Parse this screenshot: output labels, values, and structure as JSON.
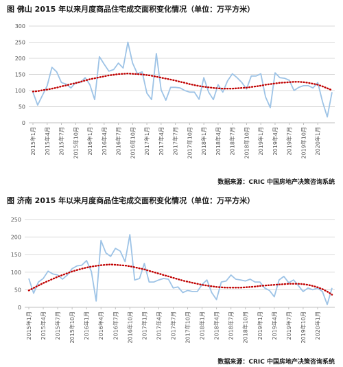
{
  "charts": [
    {
      "title": "图 佛山 2015 年以来月度商品住宅成交面积变化情况（单位：万平方米）",
      "source": "数据来源：CRIC 中国房地产决策咨询系统"
    },
    {
      "title": "图 济南 2015 年以来月度商品住宅成交面积变化情况（单位：万平方米）",
      "source": "数据来源：CRIC 中国房地产决策咨询系统"
    }
  ],
  "colors": {
    "series": "#9dc3e6",
    "trend": "#c00000",
    "grid": "#d9d9d9",
    "axis": "#bfbfbf"
  },
  "chart_data": [
    {
      "type": "line",
      "title": "图 佛山 2015 年以来月度商品住宅成交面积变化情况（单位：万平方米）",
      "x_tick_labels": [
        "2015年1月",
        "2015年4月",
        "2015年7月",
        "2015年10月",
        "2016年1月",
        "2016年4月",
        "2016年7月",
        "2016年10月",
        "2017年1月",
        "2017年4月",
        "2017年7月",
        "2017年10月",
        "2018年1月",
        "2018年4月",
        "2018年7月",
        "2018年10月",
        "2019年1月",
        "2019年4月",
        "2019年7月",
        "2019年10月",
        "2020年1月"
      ],
      "x_start": "2015-01",
      "x_end": "2020-04",
      "ylim": [
        0,
        300
      ],
      "yticks": [
        0,
        50,
        100,
        150,
        200,
        250,
        300
      ],
      "grid": true,
      "series": [
        {
          "kind": "data",
          "values": [
            95,
            55,
            85,
            115,
            172,
            158,
            125,
            120,
            108,
            125,
            125,
            140,
            118,
            72,
            205,
            182,
            160,
            165,
            185,
            170,
            250,
            185,
            152,
            158,
            92,
            72,
            215,
            102,
            70,
            110,
            110,
            108,
            100,
            95,
            95,
            73,
            140,
            95,
            72,
            118,
            95,
            130,
            152,
            140,
            125,
            105,
            145,
            145,
            152,
            80,
            47,
            155,
            140,
            138,
            132,
            100,
            110,
            115,
            115,
            108,
            125,
            65,
            18,
            95
          ]
        },
        {
          "kind": "trend",
          "values": [
            97,
            98,
            101,
            103,
            106,
            109,
            113,
            116,
            120,
            123,
            127,
            131,
            135,
            138,
            141,
            144,
            147,
            149,
            151,
            152,
            153,
            152,
            151,
            150,
            148,
            146,
            143,
            140,
            137,
            134,
            131,
            127,
            124,
            120,
            117,
            114,
            112,
            110,
            108,
            107,
            106,
            106,
            106,
            107,
            108,
            109,
            111,
            113,
            115,
            118,
            120,
            122,
            124,
            125,
            126,
            127,
            127,
            126,
            124,
            121,
            118,
            113,
            107,
            101
          ]
        }
      ]
    },
    {
      "type": "line",
      "title": "图 济南 2015 年以来月度商品住宅成交面积变化情况（单位：万平方米）",
      "x_tick_labels": [
        "2015年1月",
        "2015年4月",
        "2015年7月",
        "2015年10月",
        "2016年1月",
        "2016年4月",
        "2016年7月",
        "2016年10月",
        "2017年1月",
        "2017年4月",
        "2017年7月",
        "2017年10月",
        "2018年1月",
        "2018年4月",
        "2018年7月",
        "2018年10月",
        "2019年1月",
        "2019年4月",
        "2019年7月",
        "2019年10月",
        "2020年1月"
      ],
      "x_start": "2015-01",
      "x_end": "2020-04",
      "ylim": [
        0,
        250
      ],
      "yticks": [
        0,
        50,
        100,
        150,
        200,
        250
      ],
      "grid": true,
      "series": [
        {
          "kind": "data",
          "values": [
            82,
            40,
            72,
            82,
            103,
            95,
            92,
            80,
            92,
            110,
            118,
            120,
            133,
            102,
            18,
            190,
            155,
            145,
            168,
            160,
            130,
            207,
            78,
            82,
            125,
            72,
            72,
            78,
            82,
            80,
            55,
            58,
            42,
            48,
            45,
            45,
            65,
            78,
            42,
            22,
            72,
            75,
            92,
            80,
            78,
            75,
            80,
            72,
            72,
            55,
            48,
            30,
            78,
            88,
            70,
            78,
            62,
            45,
            55,
            50,
            55,
            45,
            8,
            55
          ]
        },
        {
          "kind": "trend",
          "values": [
            48,
            55,
            62,
            69,
            75,
            81,
            87,
            92,
            97,
            102,
            106,
            110,
            113,
            116,
            118,
            120,
            121,
            122,
            121,
            120,
            119,
            117,
            114,
            111,
            108,
            104,
            100,
            96,
            92,
            88,
            84,
            80,
            76,
            73,
            70,
            67,
            64,
            62,
            60,
            58,
            57,
            56,
            56,
            56,
            56,
            57,
            58,
            59,
            61,
            62,
            63,
            64,
            65,
            66,
            67,
            67,
            67,
            66,
            64,
            61,
            57,
            52,
            45,
            36
          ]
        }
      ]
    }
  ]
}
